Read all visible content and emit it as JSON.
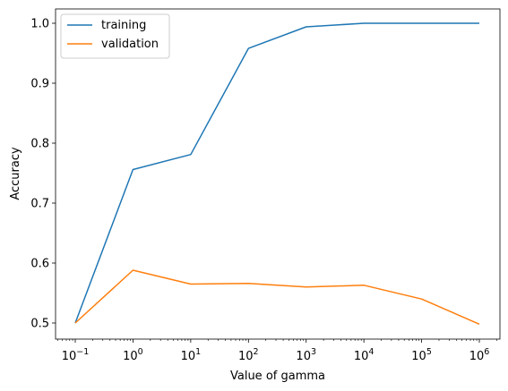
{
  "chart_data": {
    "type": "line",
    "xlabel": "Value of gamma",
    "ylabel": "Accuracy",
    "x_scale": "log",
    "x": [
      0.1,
      1,
      10,
      100,
      1000,
      10000,
      100000,
      1000000
    ],
    "x_tick_exponents": [
      "−1",
      "0",
      "1",
      "2",
      "3",
      "4",
      "5",
      "6"
    ],
    "x_tick_base": "10",
    "y_ticks": [
      "0.5",
      "0.6",
      "0.7",
      "0.8",
      "0.9",
      "1.0"
    ],
    "series": [
      {
        "name": "training",
        "color": "#1f77b4",
        "values": [
          0.5,
          0.756,
          0.781,
          0.958,
          0.994,
          1.0,
          1.0,
          1.0
        ]
      },
      {
        "name": "validation",
        "color": "#ff7f0e",
        "values": [
          0.5,
          0.588,
          0.565,
          0.566,
          0.56,
          0.563,
          0.54,
          0.498
        ]
      }
    ],
    "legend_position": "upper-left",
    "grid": false
  }
}
